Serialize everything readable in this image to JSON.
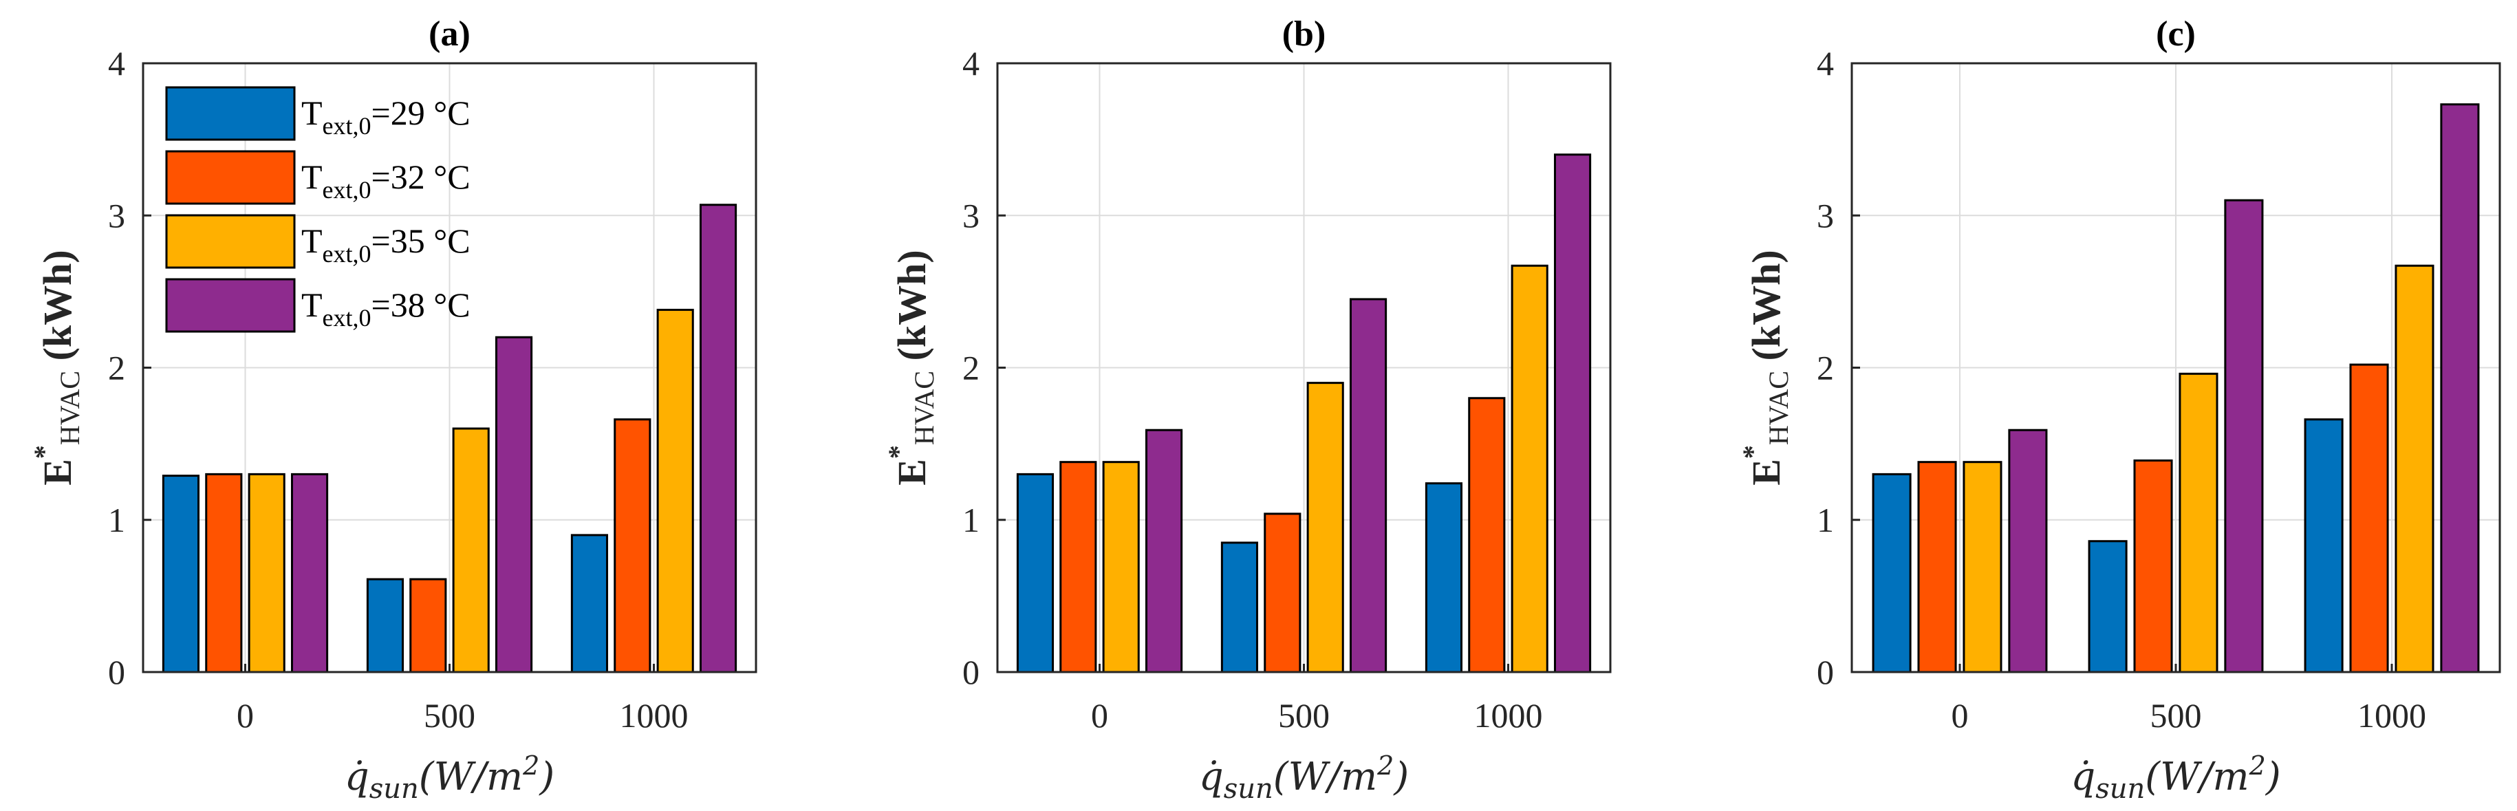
{
  "colors": {
    "series": [
      "#0072BD",
      "#FF5300",
      "#FFB000",
      "#8E2B8E"
    ],
    "grid": "#dcdcdc",
    "axis": "#262626"
  },
  "chart_data": [
    {
      "type": "bar",
      "title": "(a)",
      "categories": [
        "0",
        "500",
        "1000"
      ],
      "ylabel": "E*HVAC (kWh)",
      "xlabel": "q̇sun(W/m²)",
      "ylim": [
        0,
        4
      ],
      "yticks": [
        "0",
        "1",
        "2",
        "3",
        "4"
      ],
      "grid": true,
      "legend": "top-left",
      "series": [
        {
          "name": "Text,0=29 °C",
          "values": [
            1.29,
            0.61,
            0.9
          ]
        },
        {
          "name": "Text,0=32 °C",
          "values": [
            1.3,
            0.61,
            1.66
          ]
        },
        {
          "name": "Text,0=35 °C",
          "values": [
            1.3,
            1.6,
            2.38
          ]
        },
        {
          "name": "Text,0=38 °C",
          "values": [
            1.3,
            2.2,
            3.07
          ]
        }
      ]
    },
    {
      "type": "bar",
      "title": "(b)",
      "categories": [
        "0",
        "500",
        "1000"
      ],
      "ylabel": "E*HVAC (kWh)",
      "xlabel": "q̇sun(W/m²)",
      "ylim": [
        0,
        4
      ],
      "yticks": [
        "0",
        "1",
        "2",
        "3",
        "4"
      ],
      "grid": true,
      "series": [
        {
          "name": "Text,0=29 °C",
          "values": [
            1.3,
            0.85,
            1.24
          ]
        },
        {
          "name": "Text,0=32 °C",
          "values": [
            1.38,
            1.04,
            1.8
          ]
        },
        {
          "name": "Text,0=35 °C",
          "values": [
            1.38,
            1.9,
            2.67
          ]
        },
        {
          "name": "Text,0=38 °C",
          "values": [
            1.59,
            2.45,
            3.4
          ]
        }
      ]
    },
    {
      "type": "bar",
      "title": "(c)",
      "categories": [
        "0",
        "500",
        "1000"
      ],
      "ylabel": "E*HVAC (kWh)",
      "xlabel": "q̇sun(W/m²)",
      "ylim": [
        0,
        4
      ],
      "yticks": [
        "0",
        "1",
        "2",
        "3",
        "4"
      ],
      "grid": true,
      "series": [
        {
          "name": "Text,0=29 °C",
          "values": [
            1.3,
            0.86,
            1.66
          ]
        },
        {
          "name": "Text,0=32 °C",
          "values": [
            1.38,
            1.39,
            2.02
          ]
        },
        {
          "name": "Text,0=35 °C",
          "values": [
            1.38,
            1.96,
            2.67
          ]
        },
        {
          "name": "Text,0=38 °C",
          "values": [
            1.59,
            3.1,
            3.73
          ]
        }
      ]
    }
  ]
}
